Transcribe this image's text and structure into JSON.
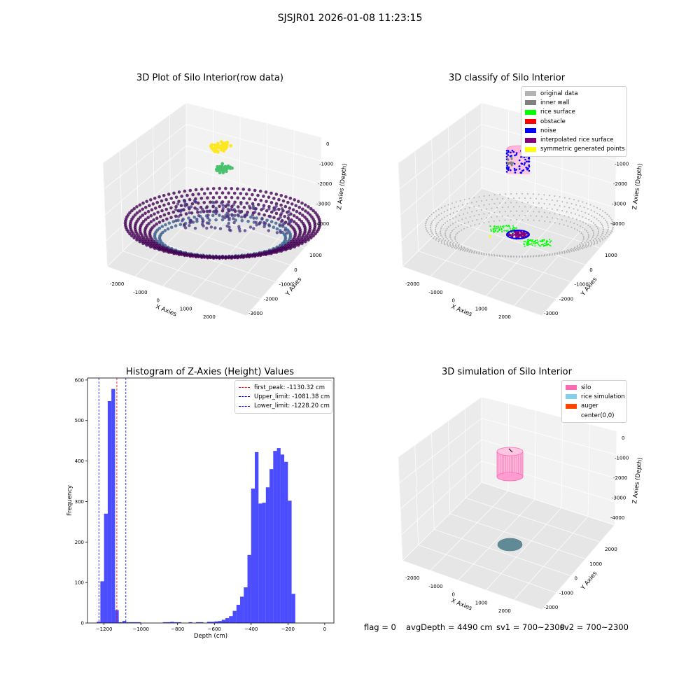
{
  "figure": {
    "suptitle": "SJSJR01 2026-01-08 11:23:15"
  },
  "status": {
    "flag": "flag = 0",
    "avg_depth": "avgDepth = 4490 cm",
    "sv1": "sv1 = 700~2300",
    "sv2": "sv2 = 700~2300"
  },
  "chart_data": [
    {
      "type": "scatter",
      "projection": "3d",
      "title": "3D Plot of Silo Interior(row data)",
      "xlabel": "X Axies",
      "ylabel": "Y Axies",
      "zlabel": "Z Axies (Depth)",
      "xticks": [
        "-2000",
        "-1000",
        "0",
        "1000",
        "2000"
      ],
      "yticks": [
        "1000",
        "0",
        "-1000",
        "-2000",
        "-3000"
      ],
      "zticks": [
        "0",
        "-1000",
        "-2000",
        "-3000",
        "-4000"
      ],
      "colormap": "viridis",
      "grid": true
    },
    {
      "type": "scatter",
      "projection": "3d",
      "title": "3D classify of Silo Interior",
      "xlabel": "X Axies",
      "ylabel": "Y Axies",
      "zlabel": "Z Axies (Depth)",
      "xticks": [
        "-2000",
        "-1000",
        "0",
        "1000",
        "2000"
      ],
      "yticks": [
        "1000",
        "0",
        "-1000",
        "-2000",
        "-3000"
      ],
      "zticks": [
        "0",
        "-1000",
        "-2000",
        "-3000",
        "-4000"
      ],
      "legend": [
        {
          "label": "original data",
          "color": "#b3b3b3"
        },
        {
          "label": "inner wall",
          "color": "#808080"
        },
        {
          "label": "rice surface",
          "color": "#00ff00"
        },
        {
          "label": "obstacle",
          "color": "#ff0000"
        },
        {
          "label": "noise",
          "color": "#0000ff"
        },
        {
          "label": "interpolated rice surface",
          "color": "#800080"
        },
        {
          "label": "symmetric generated points",
          "color": "#ffff00"
        }
      ],
      "legend_loc": "upper right",
      "grid": true
    },
    {
      "type": "bar",
      "title": "Histogram of Z-Axies (Height) Values",
      "xlabel": "Depth (cm)",
      "ylabel": "Frequency",
      "xlim": [
        -1290,
        50
      ],
      "ylim": [
        0,
        605
      ],
      "xticks": [
        -1200,
        -1000,
        -800,
        -600,
        -400,
        -200,
        0
      ],
      "yticks": [
        0,
        100,
        200,
        300,
        400,
        500,
        600
      ],
      "bar_color": "#0000ff",
      "bins": [
        [
          -1240,
          -1220,
          3
        ],
        [
          -1220,
          -1200,
          103
        ],
        [
          -1200,
          -1180,
          270
        ],
        [
          -1180,
          -1160,
          548
        ],
        [
          -1160,
          -1140,
          578
        ],
        [
          -1140,
          -1120,
          32
        ],
        [
          -1120,
          -1100,
          2
        ],
        [
          -1100,
          -1080,
          5
        ],
        [
          -1080,
          -1060,
          2
        ],
        [
          -1060,
          -1040,
          2
        ],
        [
          -1040,
          -1020,
          2
        ],
        [
          -1020,
          -1000,
          2
        ],
        [
          -880,
          -860,
          2
        ],
        [
          -860,
          -840,
          2
        ],
        [
          -840,
          -820,
          3
        ],
        [
          -820,
          -800,
          2
        ],
        [
          -800,
          -780,
          2
        ],
        [
          -740,
          -720,
          2
        ],
        [
          -700,
          -680,
          2
        ],
        [
          -680,
          -660,
          2
        ],
        [
          -640,
          -620,
          3
        ],
        [
          -620,
          -600,
          3
        ],
        [
          -600,
          -580,
          4
        ],
        [
          -580,
          -560,
          5
        ],
        [
          -560,
          -540,
          8
        ],
        [
          -540,
          -520,
          12
        ],
        [
          -520,
          -500,
          17
        ],
        [
          -500,
          -480,
          30
        ],
        [
          -480,
          -460,
          45
        ],
        [
          -460,
          -440,
          65
        ],
        [
          -440,
          -420,
          88
        ],
        [
          -420,
          -400,
          168
        ],
        [
          -400,
          -380,
          332
        ],
        [
          -380,
          -360,
          422
        ],
        [
          -360,
          -340,
          295
        ],
        [
          -340,
          -320,
          297
        ],
        [
          -320,
          -300,
          335
        ],
        [
          -300,
          -280,
          380
        ],
        [
          -280,
          -260,
          425
        ],
        [
          -260,
          -240,
          432
        ],
        [
          -240,
          -220,
          416
        ],
        [
          -220,
          -200,
          398
        ],
        [
          -200,
          -180,
          302
        ],
        [
          -180,
          -160,
          72
        ],
        [
          -160,
          -140,
          0
        ]
      ],
      "vlines": [
        {
          "label": "first_peak: -1130.32 cm",
          "x": -1130.32,
          "color": "#ff0000"
        },
        {
          "label": "Upper_limit: -1081.38 cm",
          "x": -1081.38,
          "color": "#0000ff"
        },
        {
          "label": "Lower_limit: -1228.20 cm",
          "x": -1228.2,
          "color": "#0000ff"
        }
      ],
      "legend_loc": "upper right"
    },
    {
      "type": "scatter",
      "projection": "3d",
      "title": "3D simulation of Silo Interior",
      "xlabel": "X Axies",
      "ylabel": "Y Axies",
      "zlabel": "Z Axies (Depth)",
      "xticks": [
        "-2000",
        "-1000",
        "0",
        "1000",
        "2000"
      ],
      "yticks": [
        "2000",
        "1000",
        "0",
        "-1000",
        "-2000"
      ],
      "zticks": [
        "0",
        "-1000",
        "-2000",
        "-3000",
        "-4000"
      ],
      "legend": [
        {
          "label": "silo",
          "color": "#ff69b4"
        },
        {
          "label": "rice simulation",
          "color": "#87ceeb"
        },
        {
          "label": "auger",
          "color": "#ff4500"
        },
        {
          "label": "center(0,0)",
          "color": "#ffffff"
        }
      ],
      "legend_loc": "upper right",
      "grid": true
    }
  ]
}
